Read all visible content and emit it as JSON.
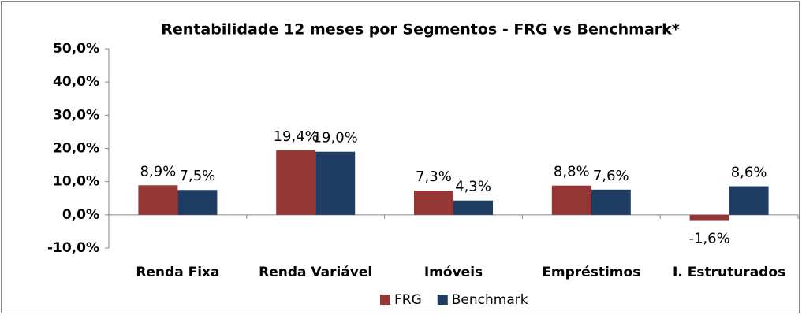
{
  "chart_data": {
    "type": "bar",
    "title": "Rentabilidade 12 meses por Segmentos - FRG vs Benchmark*",
    "categories": [
      "Renda Fixa",
      "Renda Variável",
      "Imóveis",
      "Empréstimos",
      "I. Estruturados"
    ],
    "series": [
      {
        "name": "FRG",
        "color": "#953735",
        "values": [
          8.9,
          19.4,
          7.3,
          8.8,
          -1.6
        ],
        "value_labels": [
          "8,9%",
          "19,4%",
          "7,3%",
          "8,8%",
          "-1,6%"
        ]
      },
      {
        "name": "Benchmark",
        "color": "#1f3d63",
        "values": [
          7.5,
          19.0,
          4.3,
          7.6,
          8.6
        ],
        "value_labels": [
          "7,5%",
          "19,0%",
          "4,3%",
          "7,6%",
          "8,6%"
        ]
      }
    ],
    "ylim": [
      -10,
      50
    ],
    "yticks": [
      {
        "value": -10,
        "label": "-10,0%"
      },
      {
        "value": 0,
        "label": "0,0%"
      },
      {
        "value": 10,
        "label": "10,0%"
      },
      {
        "value": 20,
        "label": "20,0%"
      },
      {
        "value": 30,
        "label": "30,0%"
      },
      {
        "value": 40,
        "label": "40,0%"
      },
      {
        "value": 50,
        "label": "50,0%"
      }
    ],
    "grid": false,
    "legend": "bottom"
  }
}
